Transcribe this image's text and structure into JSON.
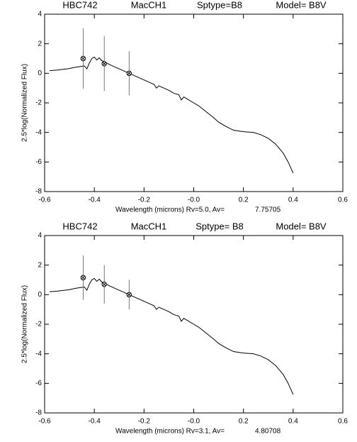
{
  "chart_data": [
    {
      "type": "line",
      "title_parts": [
        "HBC742",
        "MacCH1",
        "Sptype=B8",
        "Model= B8V"
      ],
      "xlabel": "Wavelength (microns) Rv=5.0, Av=",
      "av": 7.75705,
      "ylabel": "2.5*log(Normalized Flux)",
      "xlim": [
        -0.6,
        0.6
      ],
      "xticks": [
        -0.6,
        -0.4,
        -0.2,
        {
          "value": 0,
          "label": "-0.0"
        },
        0.2,
        0.4,
        0.6
      ],
      "ylim": [
        -8,
        4
      ],
      "yticks": [
        -8,
        -6,
        -4,
        -2,
        0,
        2,
        4
      ],
      "model": {
        "x": [
          -0.58,
          -0.55,
          -0.52,
          -0.5,
          -0.48,
          -0.46,
          -0.44,
          -0.43,
          -0.42,
          -0.41,
          -0.4,
          -0.39,
          -0.38,
          -0.37,
          -0.36,
          -0.34,
          -0.32,
          -0.3,
          -0.28,
          -0.26,
          -0.24,
          -0.22,
          -0.2,
          -0.18,
          -0.16,
          -0.15,
          -0.14,
          -0.12,
          -0.1,
          -0.08,
          -0.06,
          -0.05,
          -0.04,
          -0.02,
          0.0,
          0.02,
          0.05,
          0.08,
          0.1,
          0.13,
          0.16,
          0.2,
          0.24,
          0.27,
          0.3,
          0.33,
          0.36,
          0.38,
          0.4
        ],
        "values": [
          0.18,
          0.22,
          0.28,
          0.32,
          0.4,
          0.45,
          0.5,
          0.3,
          0.7,
          1.0,
          1.1,
          0.9,
          1.05,
          0.85,
          0.8,
          0.6,
          0.45,
          0.3,
          0.15,
          0.0,
          -0.15,
          -0.3,
          -0.45,
          -0.6,
          -0.75,
          -1.0,
          -0.85,
          -1.0,
          -1.15,
          -1.35,
          -1.45,
          -1.8,
          -1.6,
          -1.8,
          -2.0,
          -2.2,
          -2.6,
          -3.0,
          -3.3,
          -3.6,
          -3.85,
          -3.95,
          -4.0,
          -4.15,
          -4.4,
          -4.8,
          -5.4,
          -6.0,
          -6.75
        ]
      },
      "observations": {
        "x": [
          -0.445,
          -0.36,
          -0.26
        ],
        "values": [
          1.0,
          0.65,
          0.0
        ],
        "errors": [
          2.05,
          1.85,
          1.5
        ]
      }
    },
    {
      "type": "line",
      "title_parts": [
        "HBC742",
        "MacCH1",
        "Sptype= B8",
        "Model= B8V"
      ],
      "xlabel": "Wavelength (microns) Rv=3.1,  Av=",
      "av": 4.80708,
      "ylabel": "2.5*log(Normalized Flux)",
      "xlim": [
        -0.6,
        0.6
      ],
      "xticks": [
        -0.6,
        -0.4,
        -0.2,
        {
          "value": 0,
          "label": "-0.0"
        },
        0.2,
        0.4,
        0.6
      ],
      "ylim": [
        -8,
        4
      ],
      "yticks": [
        -8,
        -6,
        -4,
        -2,
        0,
        2,
        4
      ],
      "model": {
        "x": [
          -0.58,
          -0.55,
          -0.52,
          -0.5,
          -0.48,
          -0.46,
          -0.44,
          -0.43,
          -0.42,
          -0.41,
          -0.4,
          -0.39,
          -0.38,
          -0.37,
          -0.36,
          -0.34,
          -0.32,
          -0.3,
          -0.28,
          -0.26,
          -0.24,
          -0.22,
          -0.2,
          -0.18,
          -0.16,
          -0.15,
          -0.14,
          -0.12,
          -0.1,
          -0.08,
          -0.06,
          -0.05,
          -0.04,
          -0.02,
          0.0,
          0.02,
          0.05,
          0.08,
          0.1,
          0.13,
          0.16,
          0.2,
          0.24,
          0.27,
          0.3,
          0.33,
          0.36,
          0.38,
          0.4
        ],
        "values": [
          0.2,
          0.24,
          0.3,
          0.34,
          0.42,
          0.47,
          0.52,
          0.3,
          0.72,
          1.0,
          1.1,
          0.9,
          1.05,
          0.85,
          0.8,
          0.6,
          0.45,
          0.3,
          0.15,
          0.0,
          -0.15,
          -0.3,
          -0.45,
          -0.6,
          -0.75,
          -1.0,
          -0.85,
          -1.0,
          -1.15,
          -1.35,
          -1.45,
          -1.8,
          -1.6,
          -1.8,
          -2.0,
          -2.2,
          -2.6,
          -3.0,
          -3.3,
          -3.6,
          -3.85,
          -3.95,
          -4.0,
          -4.15,
          -4.4,
          -4.8,
          -5.4,
          -6.0,
          -6.75
        ]
      },
      "observations": {
        "x": [
          -0.445,
          -0.36,
          -0.26
        ],
        "values": [
          1.15,
          0.7,
          0.0
        ],
        "errors": [
          1.5,
          1.3,
          1.0
        ]
      }
    }
  ]
}
